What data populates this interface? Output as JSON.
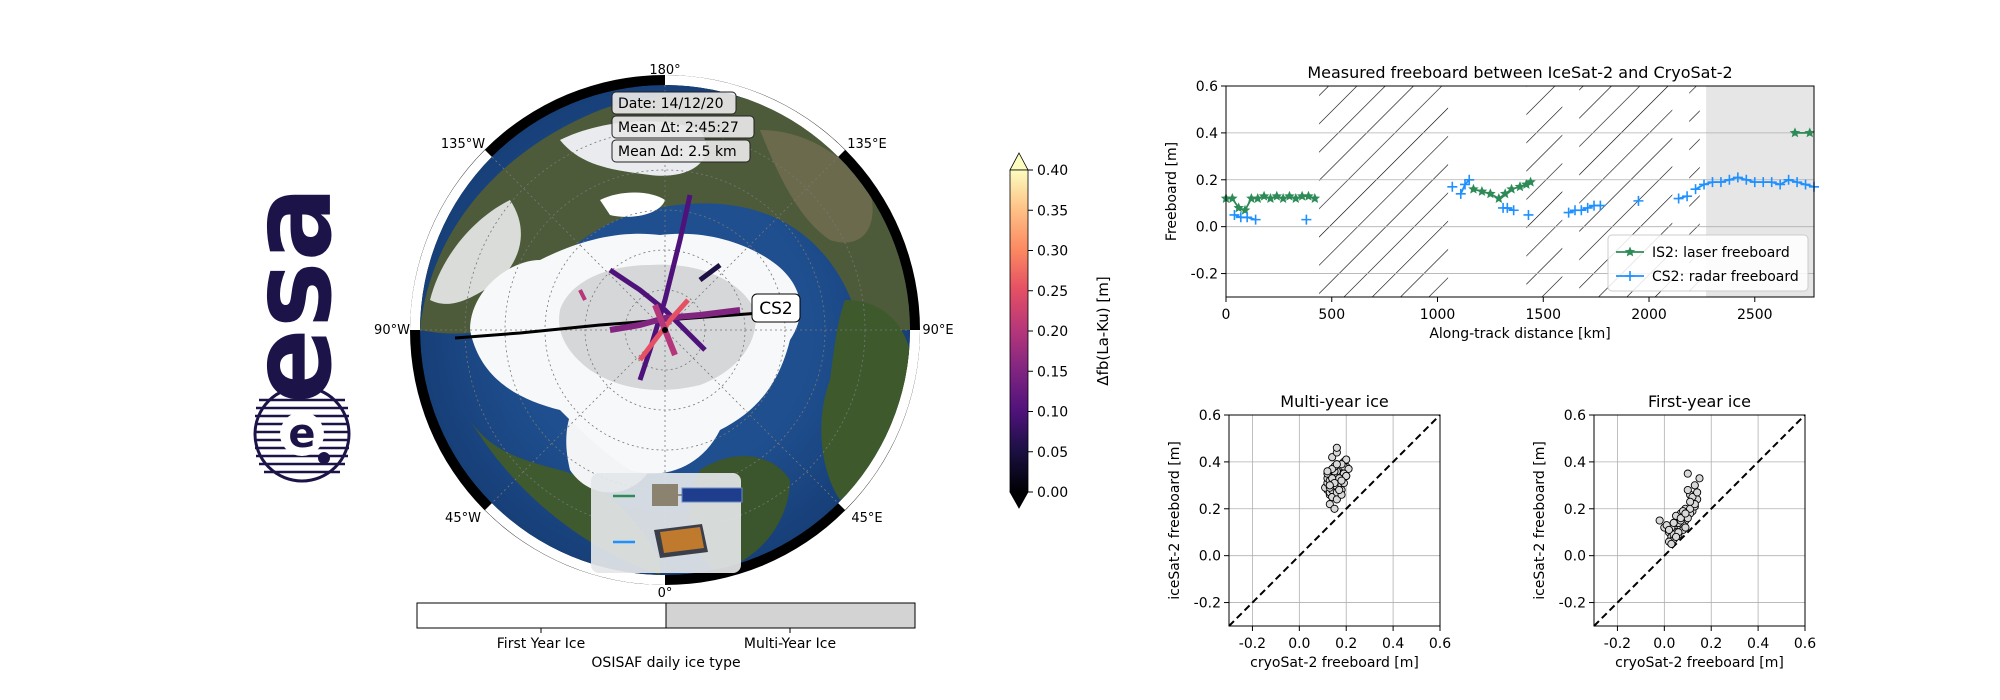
{
  "logo": {
    "text": "esa"
  },
  "polar_map": {
    "lon_labels": {
      "top": "180°",
      "top_left": "135°W",
      "top_right": "135°E",
      "left": "90°W",
      "right": "90°E",
      "bottom_left": "45°W",
      "bottom_right": "45°E",
      "bottom": "0°"
    },
    "info_boxes": [
      "Date: 14/12/20",
      "Mean Δt: 2:45:27",
      "Mean Δd: 2.5 km"
    ],
    "track_label": "CS2",
    "satellite_legend": [
      {
        "color": "#2e8b57",
        "icon": "icesat2-satellite-icon"
      },
      {
        "color": "#1e90ff",
        "icon": "cryosat2-satellite-icon"
      }
    ]
  },
  "ice_type_bar": {
    "segments": [
      "First Year Ice",
      "Multi-Year Ice"
    ],
    "title": "OSISAF daily ice type",
    "colors": [
      "#ffffff",
      "#d3d3d3"
    ]
  },
  "colorbar": {
    "label": "Δfb(La-Ku) [m]",
    "ticks": [
      "0.40",
      "0.35",
      "0.30",
      "0.25",
      "0.20",
      "0.15",
      "0.10",
      "0.05",
      "0.00"
    ],
    "range": [
      0.0,
      0.4
    ],
    "colormap": "magma"
  },
  "chart_data": [
    {
      "type": "line",
      "title": "Measured freeboard between IceSat-2 and CryoSat-2",
      "xlabel": "Along-track distance [km]",
      "ylabel": "Freeboard [m]",
      "xlim": [
        0,
        2780
      ],
      "ylim": [
        -0.3,
        0.6
      ],
      "xticks": [
        0,
        500,
        1000,
        1500,
        2000,
        2500
      ],
      "yticks": [
        -0.2,
        0.0,
        0.2,
        0.4,
        0.6
      ],
      "grid": true,
      "legend_position": "lower right",
      "hatched_ranges": [
        [
          440,
          1050
        ],
        [
          1420,
          1590
        ],
        [
          1670,
          2110
        ],
        [
          2190,
          2240
        ]
      ],
      "shaded_ranges": [
        [
          2270,
          2780
        ]
      ],
      "series": [
        {
          "name": "IS2: laser freeboard",
          "color": "#2e8b57",
          "marker": "star",
          "segments": [
            [
              [
                0,
                0.12
              ],
              [
                30,
                0.12
              ],
              [
                60,
                0.08
              ],
              [
                90,
                0.07
              ],
              [
                120,
                0.12
              ],
              [
                150,
                0.12
              ],
              [
                180,
                0.13
              ],
              [
                210,
                0.12
              ],
              [
                240,
                0.13
              ],
              [
                270,
                0.12
              ],
              [
                300,
                0.13
              ],
              [
                330,
                0.12
              ],
              [
                360,
                0.13
              ],
              [
                390,
                0.13
              ],
              [
                420,
                0.12
              ]
            ],
            [
              [
                1170,
                0.16
              ],
              [
                1210,
                0.15
              ],
              [
                1250,
                0.14
              ],
              [
                1290,
                0.12
              ],
              [
                1320,
                0.14
              ],
              [
                1350,
                0.16
              ],
              [
                1390,
                0.17
              ],
              [
                1420,
                0.18
              ],
              [
                1440,
                0.19
              ]
            ],
            [
              [
                2690,
                0.4
              ],
              [
                2760,
                0.4
              ]
            ]
          ]
        },
        {
          "name": "CS2: radar freeboard",
          "color": "#1e90ff",
          "marker": "plus",
          "segments": [
            [
              [
                40,
                0.05
              ],
              [
                70,
                0.04
              ],
              [
                100,
                0.04
              ],
              [
                140,
                0.03
              ]
            ],
            [
              [
                380,
                0.03
              ]
            ],
            [
              [
                1070,
                0.17
              ]
            ],
            [
              [
                1110,
                0.14
              ],
              [
                1130,
                0.18
              ],
              [
                1150,
                0.2
              ]
            ],
            [
              [
                1310,
                0.08
              ],
              [
                1330,
                0.08
              ],
              [
                1360,
                0.07
              ]
            ],
            [
              [
                1430,
                0.05
              ]
            ],
            [
              [
                1620,
                0.06
              ],
              [
                1650,
                0.07
              ],
              [
                1680,
                0.07
              ],
              [
                1710,
                0.08
              ],
              [
                1740,
                0.09
              ],
              [
                1770,
                0.09
              ]
            ],
            [
              [
                1950,
                0.11
              ]
            ],
            [
              [
                2140,
                0.12
              ],
              [
                2180,
                0.13
              ]
            ],
            [
              [
                2220,
                0.16
              ],
              [
                2260,
                0.18
              ],
              [
                2300,
                0.19
              ],
              [
                2340,
                0.19
              ],
              [
                2380,
                0.2
              ],
              [
                2420,
                0.21
              ],
              [
                2460,
                0.2
              ],
              [
                2500,
                0.19
              ],
              [
                2540,
                0.19
              ],
              [
                2580,
                0.19
              ],
              [
                2620,
                0.18
              ],
              [
                2660,
                0.2
              ],
              [
                2700,
                0.19
              ],
              [
                2740,
                0.18
              ],
              [
                2780,
                0.17
              ]
            ]
          ]
        }
      ]
    },
    {
      "type": "scatter",
      "title": "Multi-year ice",
      "xlabel": "cryoSat-2 freeboard [m]",
      "ylabel": "iceSat-2 freeboard [m]",
      "xlim": [
        -0.3,
        0.6
      ],
      "ylim": [
        -0.3,
        0.6
      ],
      "xticks": [
        -0.2,
        0.0,
        0.2,
        0.4,
        0.6
      ],
      "yticks": [
        -0.2,
        0.0,
        0.2,
        0.4,
        0.6
      ],
      "grid": true,
      "reference_line": "y = x",
      "x": [
        0.12,
        0.15,
        0.18,
        0.14,
        0.2,
        0.16,
        0.13,
        0.17,
        0.19,
        0.15,
        0.11,
        0.14,
        0.18,
        0.16,
        0.13,
        0.2,
        0.17,
        0.15,
        0.12,
        0.19,
        0.16,
        0.14,
        0.18,
        0.15,
        0.13,
        0.17,
        0.21,
        0.14,
        0.16,
        0.12,
        0.15,
        0.18,
        0.13,
        0.16,
        0.19,
        0.14,
        0.17,
        0.15,
        0.2,
        0.13,
        0.16,
        0.18,
        0.12,
        0.15,
        0.17,
        0.14,
        0.19,
        0.16,
        0.13,
        0.15,
        0.18,
        0.16,
        0.14,
        0.17,
        0.12,
        0.15,
        0.2,
        0.13,
        0.16,
        0.18
      ],
      "y": [
        0.28,
        0.33,
        0.35,
        0.3,
        0.38,
        0.32,
        0.26,
        0.36,
        0.4,
        0.31,
        0.29,
        0.34,
        0.37,
        0.3,
        0.27,
        0.41,
        0.35,
        0.33,
        0.31,
        0.38,
        0.36,
        0.28,
        0.39,
        0.34,
        0.3,
        0.32,
        0.37,
        0.25,
        0.29,
        0.33,
        0.36,
        0.31,
        0.22,
        0.27,
        0.35,
        0.42,
        0.3,
        0.38,
        0.34,
        0.32,
        0.24,
        0.28,
        0.35,
        0.3,
        0.33,
        0.37,
        0.31,
        0.44,
        0.29,
        0.2,
        0.26,
        0.39,
        0.33,
        0.28,
        0.36,
        0.31,
        0.34,
        0.3,
        0.46,
        0.32
      ]
    },
    {
      "type": "scatter",
      "title": "First-year ice",
      "xlabel": "cryoSat-2 freeboard [m]",
      "ylabel": "iceSat-2 freeboard [m]",
      "xlim": [
        -0.3,
        0.6
      ],
      "ylim": [
        -0.3,
        0.6
      ],
      "xticks": [
        -0.2,
        0.0,
        0.2,
        0.4,
        0.6
      ],
      "yticks": [
        -0.2,
        0.0,
        0.2,
        0.4,
        0.6
      ],
      "grid": true,
      "reference_line": "y = x",
      "x": [
        -0.02,
        0.0,
        0.02,
        0.04,
        0.06,
        0.03,
        0.05,
        0.08,
        0.1,
        0.12,
        0.07,
        0.09,
        0.11,
        0.13,
        0.06,
        0.04,
        0.02,
        0.08,
        0.1,
        0.05,
        0.03,
        0.07,
        0.09,
        0.12,
        0.14,
        0.11,
        0.06,
        0.08,
        0.04,
        0.1,
        0.13,
        0.15,
        0.01,
        0.05,
        0.07,
        0.09,
        0.11,
        0.03,
        0.06,
        0.12,
        0.14,
        0.08,
        0.1,
        0.04,
        0.02,
        0.07,
        0.13,
        0.09,
        0.05,
        0.11
      ],
      "y": [
        0.15,
        0.12,
        0.1,
        0.13,
        0.16,
        0.08,
        0.11,
        0.14,
        0.17,
        0.19,
        0.12,
        0.15,
        0.18,
        0.21,
        0.09,
        0.07,
        0.06,
        0.13,
        0.16,
        0.1,
        0.12,
        0.18,
        0.2,
        0.22,
        0.24,
        0.26,
        0.14,
        0.11,
        0.09,
        0.28,
        0.3,
        0.33,
        0.13,
        0.17,
        0.15,
        0.12,
        0.2,
        0.05,
        0.1,
        0.25,
        0.27,
        0.19,
        0.35,
        0.14,
        0.11,
        0.16,
        0.22,
        0.18,
        0.08,
        0.23
      ]
    }
  ]
}
